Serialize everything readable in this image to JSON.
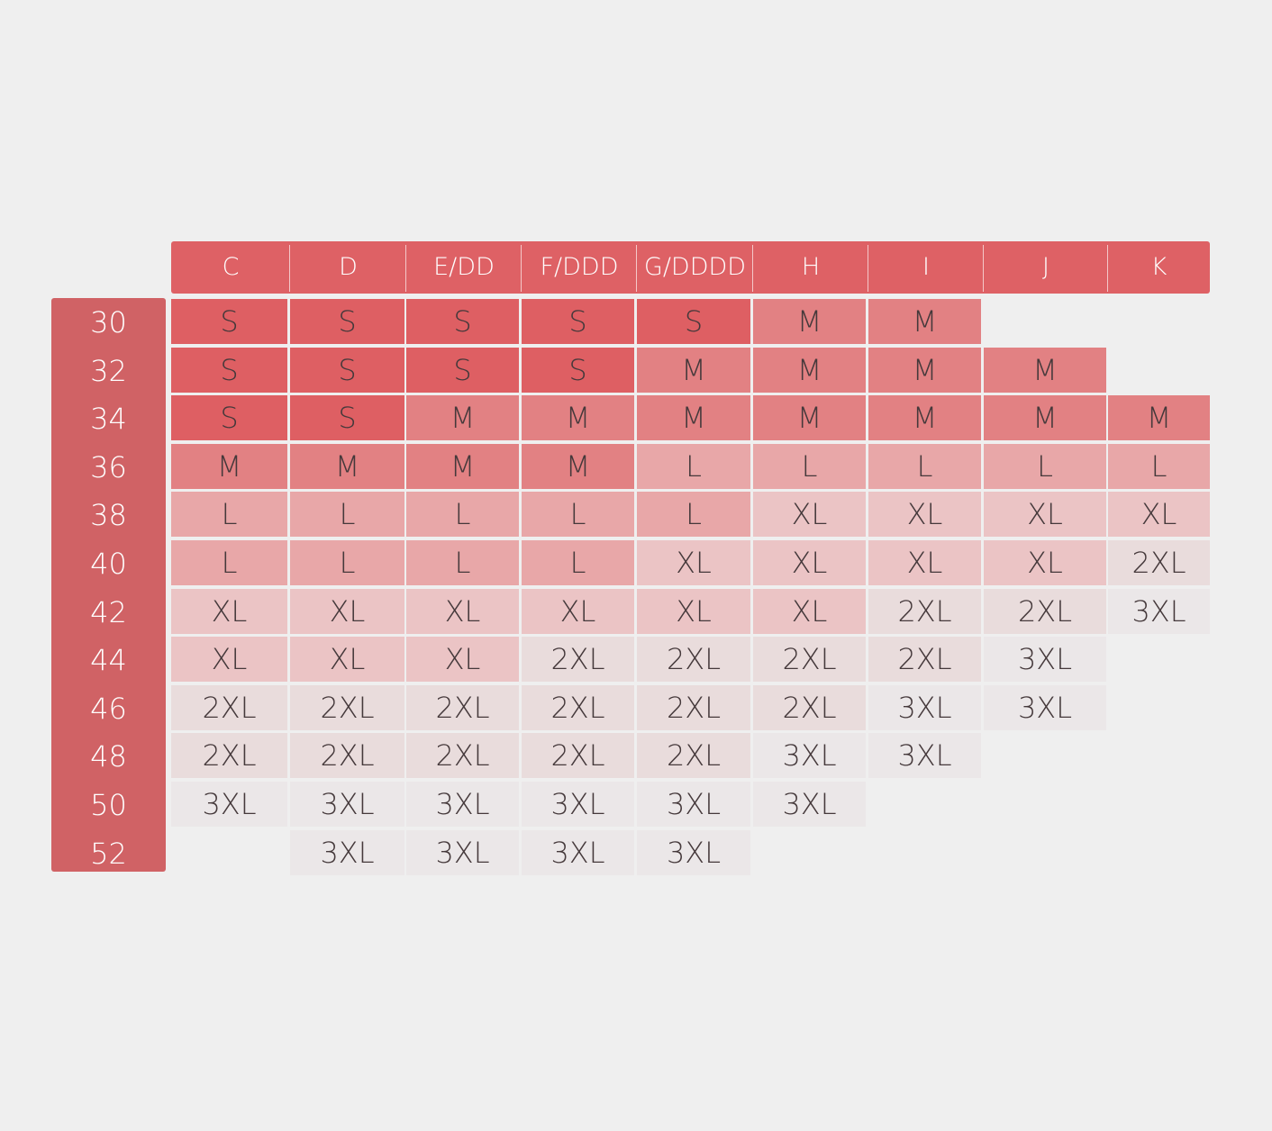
{
  "chart_data": {
    "type": "table",
    "columns": [
      "C",
      "D",
      "E/DD",
      "F/DDD",
      "G/DDDD",
      "H",
      "I",
      "J",
      "K"
    ],
    "rows": [
      {
        "band": "30",
        "sizes": [
          "S",
          "S",
          "S",
          "S",
          "S",
          "M",
          "M",
          "",
          ""
        ]
      },
      {
        "band": "32",
        "sizes": [
          "S",
          "S",
          "S",
          "S",
          "M",
          "M",
          "M",
          "M",
          ""
        ]
      },
      {
        "band": "34",
        "sizes": [
          "S",
          "S",
          "M",
          "M",
          "M",
          "M",
          "M",
          "M",
          "M"
        ]
      },
      {
        "band": "36",
        "sizes": [
          "M",
          "M",
          "M",
          "M",
          "L",
          "L",
          "L",
          "L",
          "L"
        ]
      },
      {
        "band": "38",
        "sizes": [
          "L",
          "L",
          "L",
          "L",
          "L",
          "XL",
          "XL",
          "XL",
          "XL"
        ]
      },
      {
        "band": "40",
        "sizes": [
          "L",
          "L",
          "L",
          "L",
          "XL",
          "XL",
          "XL",
          "XL",
          "2XL"
        ]
      },
      {
        "band": "42",
        "sizes": [
          "XL",
          "XL",
          "XL",
          "XL",
          "XL",
          "XL",
          "2XL",
          "2XL",
          "3XL"
        ]
      },
      {
        "band": "44",
        "sizes": [
          "XL",
          "XL",
          "XL",
          "2XL",
          "2XL",
          "2XL",
          "2XL",
          "3XL",
          ""
        ]
      },
      {
        "band": "46",
        "sizes": [
          "2XL",
          "2XL",
          "2XL",
          "2XL",
          "2XL",
          "2XL",
          "3XL",
          "3XL",
          ""
        ]
      },
      {
        "band": "48",
        "sizes": [
          "2XL",
          "2XL",
          "2XL",
          "2XL",
          "2XL",
          "3XL",
          "3XL",
          "",
          ""
        ]
      },
      {
        "band": "50",
        "sizes": [
          "3XL",
          "3XL",
          "3XL",
          "3XL",
          "3XL",
          "3XL",
          "",
          "",
          ""
        ]
      },
      {
        "band": "52",
        "sizes": [
          "",
          "3XL",
          "3XL",
          "3XL",
          "3XL",
          "",
          "",
          "",
          ""
        ]
      }
    ]
  },
  "colors": {
    "background": "#efefef",
    "header": "#de6165",
    "band_column": "#d06265",
    "size_S": "#de5f63",
    "size_M": "#e28183",
    "size_L": "#e8a7a8",
    "size_XL": "#ebc4c5",
    "size_2XL": "#e9dcdc",
    "size_3XL": "#ebe7e8",
    "header_text": "#ffffff",
    "cell_text": "#45393b"
  }
}
